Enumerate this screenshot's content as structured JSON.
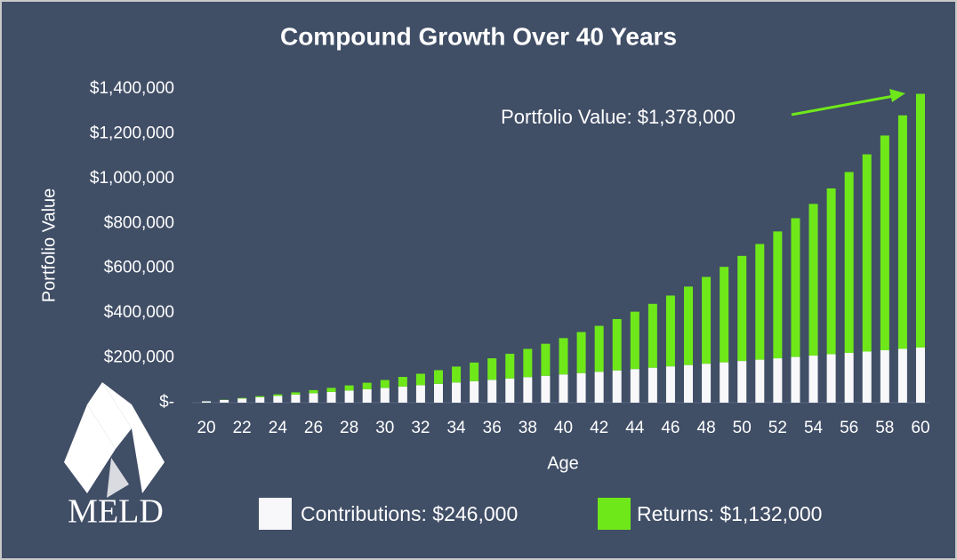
{
  "chart_data": {
    "type": "stacked-bar",
    "title": "Compound Growth Over 40 Years",
    "xlabel": "Age",
    "ylabel": "Portfolio Value",
    "annotation": "Portfolio Value: $1,378,000",
    "logo": "MELD",
    "categories": [
      20,
      null,
      22,
      null,
      24,
      null,
      26,
      null,
      28,
      null,
      30,
      null,
      32,
      null,
      34,
      null,
      36,
      null,
      38,
      null,
      40,
      null,
      42,
      null,
      44,
      null,
      46,
      null,
      48,
      null,
      50,
      null,
      52,
      null,
      54,
      null,
      56,
      null,
      58,
      null,
      60
    ],
    "series": [
      {
        "name": "Contributions: $246,000",
        "color": "#f8f8fa",
        "values": [
          6000,
          12000,
          18000,
          24000,
          30000,
          36000,
          42000,
          48000,
          54000,
          60000,
          66000,
          72000,
          78000,
          84000,
          90000,
          96000,
          102000,
          108000,
          114000,
          120000,
          126000,
          132000,
          138000,
          144000,
          150000,
          156000,
          162000,
          168000,
          174000,
          180000,
          186000,
          192000,
          198000,
          204000,
          210000,
          216000,
          222000,
          228000,
          234000,
          240000,
          246000
        ]
      },
      {
        "name": "Returns: $1,132,000",
        "color": "#6fe81a",
        "values": [
          400,
          1000,
          3000,
          5000,
          7000,
          10000,
          14000,
          18000,
          23000,
          29000,
          35000,
          43000,
          51000,
          61000,
          71000,
          83000,
          96000,
          110000,
          126000,
          143000,
          162000,
          183000,
          205000,
          229000,
          256000,
          285000,
          316000,
          350000,
          387000,
          426000,
          469000,
          516000,
          566000,
          619000,
          677000,
          740000,
          807000,
          880000,
          958000,
          1042000,
          1132000
        ]
      }
    ],
    "ylim": [
      0,
      1400000
    ],
    "yticks": [
      {
        "value": 0,
        "label": "$-"
      },
      {
        "value": 200000,
        "label": "$200,000"
      },
      {
        "value": 400000,
        "label": "$400,000"
      },
      {
        "value": 600000,
        "label": "$600,000"
      },
      {
        "value": 800000,
        "label": "$800,000"
      },
      {
        "value": 1000000,
        "label": "$1,000,000"
      },
      {
        "value": 1200000,
        "label": "$1,200,000"
      },
      {
        "value": 1400000,
        "label": "$1,400,000"
      }
    ],
    "grid": false,
    "background": "#404e66"
  }
}
